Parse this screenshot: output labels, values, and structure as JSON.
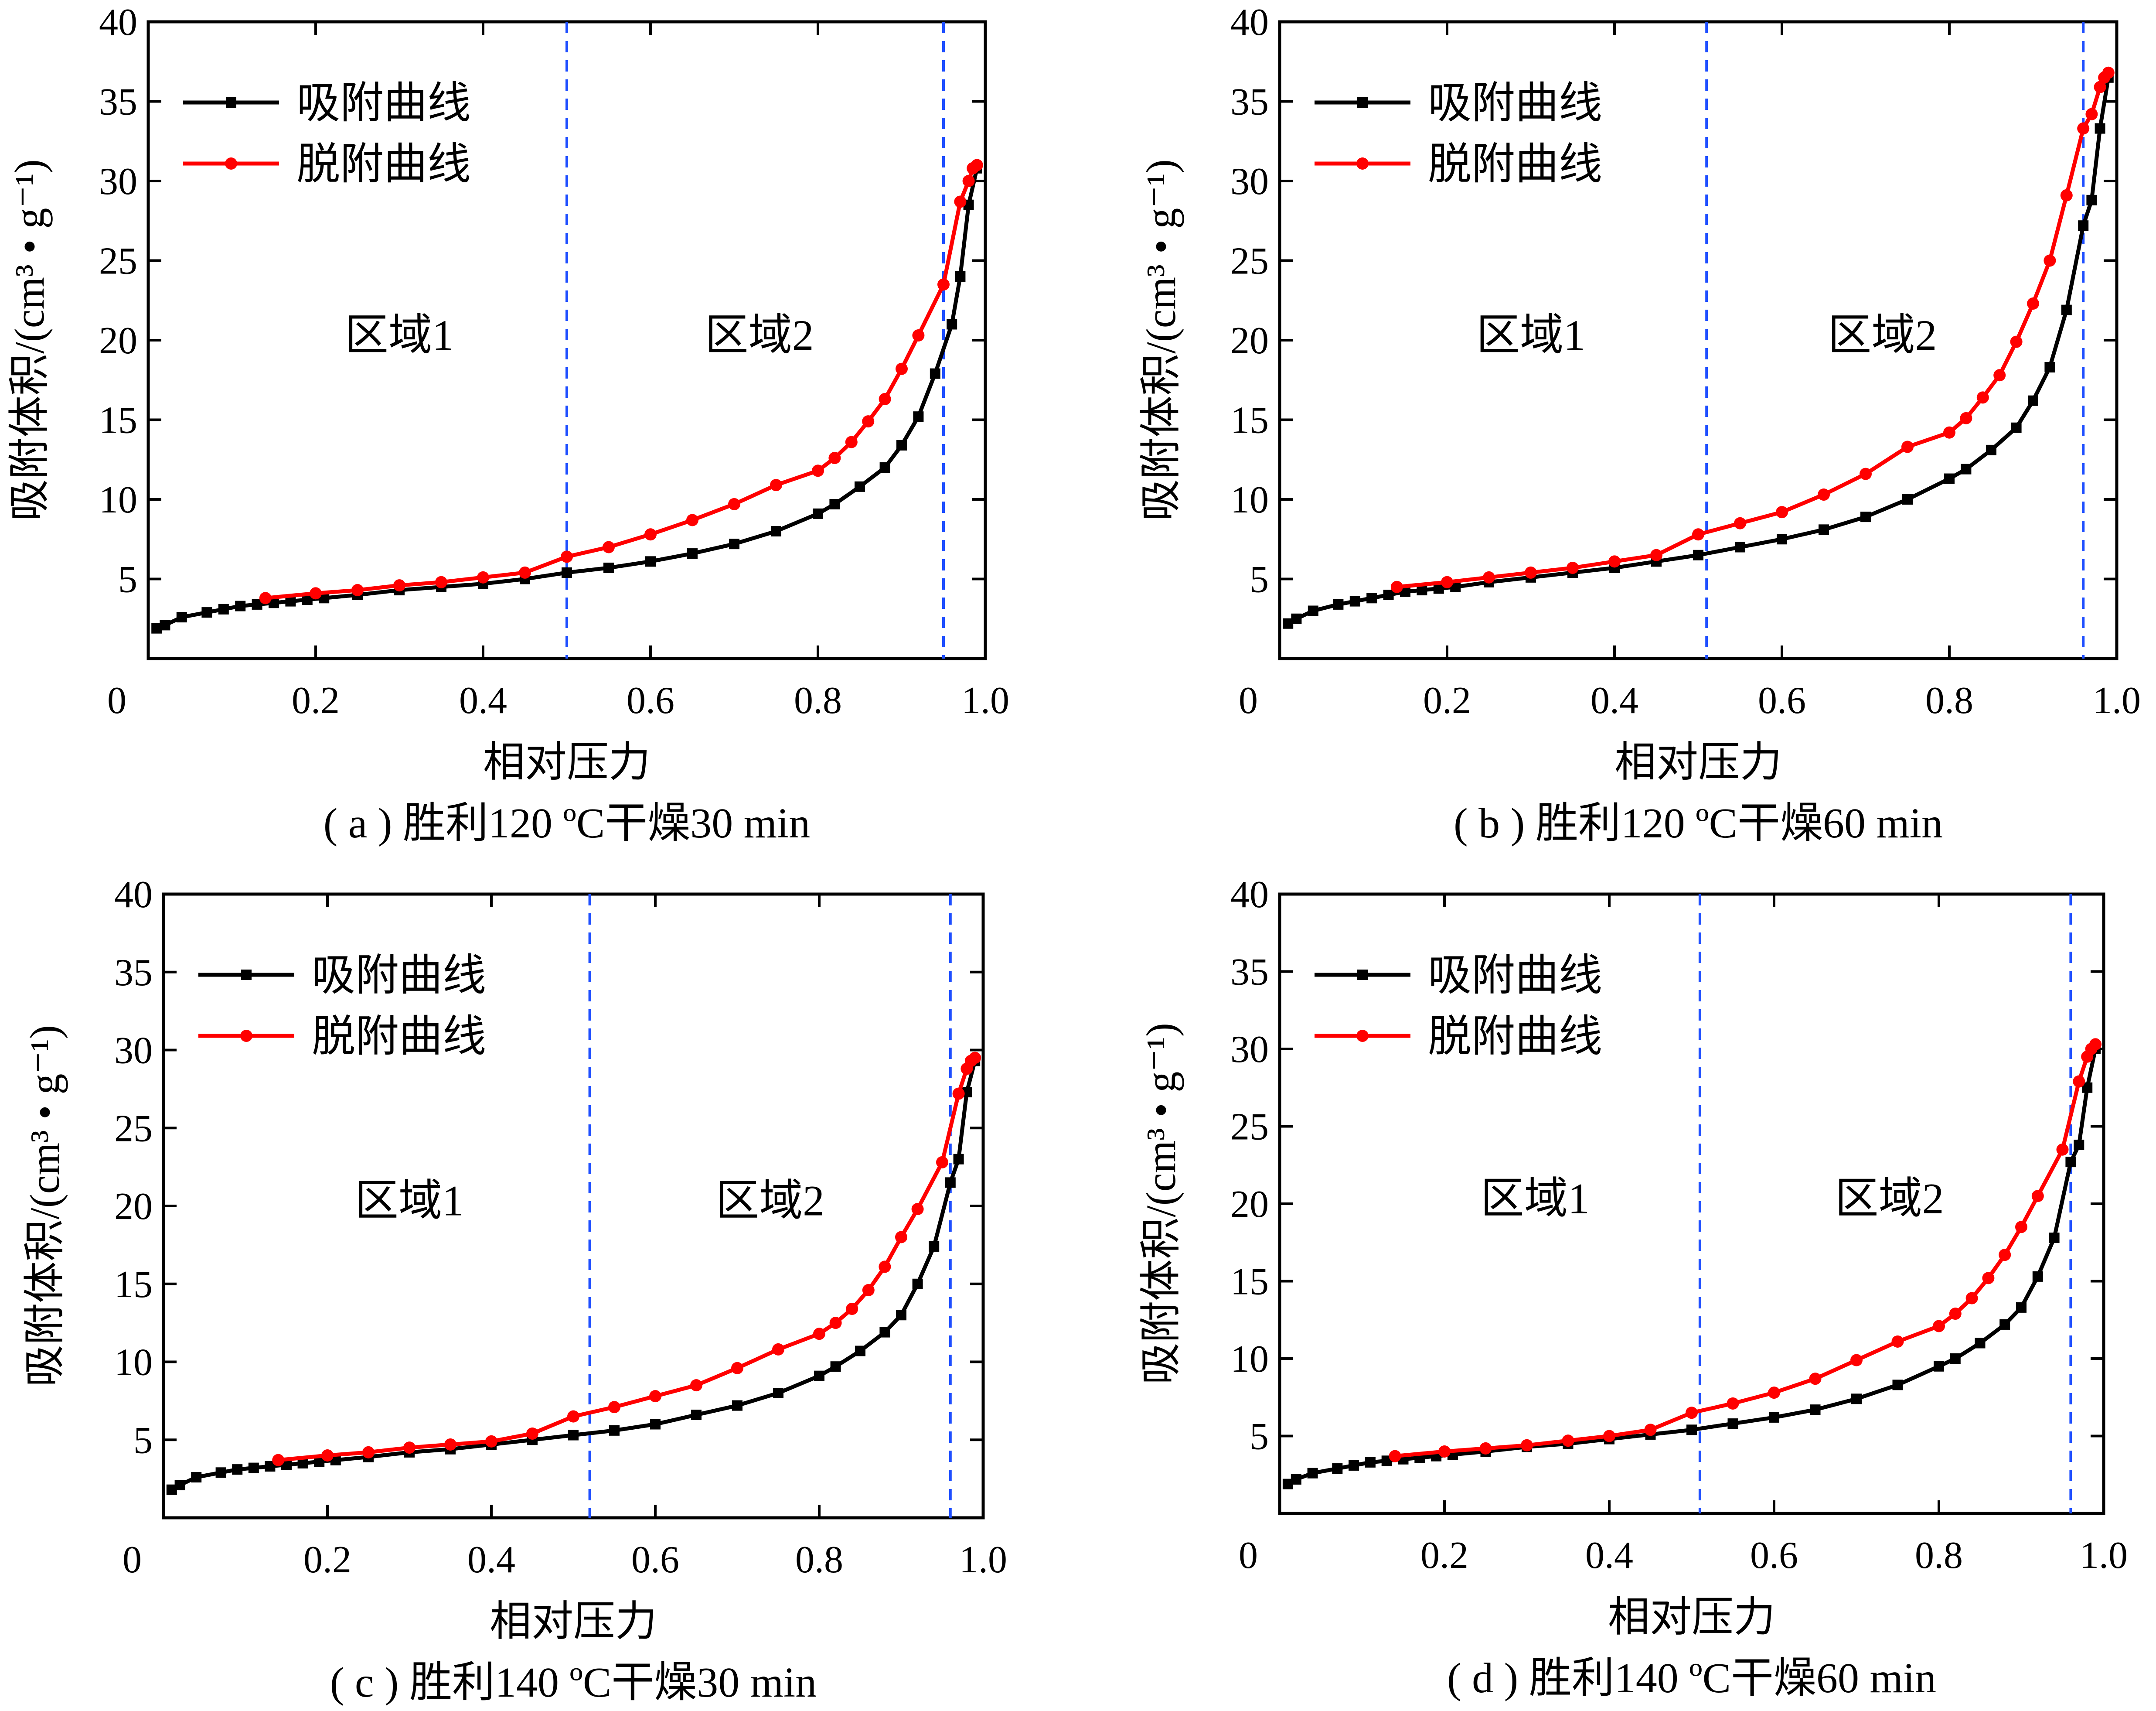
{
  "colors": {
    "adsorption": "#000000",
    "desorption": "#ff0000",
    "divider": "#1f4fff",
    "axis": "#000000"
  },
  "chart_data": [
    {
      "type": "line",
      "caption": "( a ) 胜利120 ºC干燥30 min",
      "xlabel": "相对压力",
      "ylabel": "吸附体积/(cm³ • g⁻¹)",
      "xlim": [
        0,
        1.0
      ],
      "ylim": [
        0,
        40
      ],
      "xticks": [
        "0",
        "0.2",
        "0.4",
        "0.6",
        "0.8",
        "1.0"
      ],
      "yticks": [
        "5",
        "10",
        "15",
        "20",
        "25",
        "30",
        "35",
        "40"
      ],
      "legend_position": "top-left",
      "regions": [
        {
          "label": "区域1",
          "x": 0.3
        },
        {
          "label": "区域2",
          "x": 0.73
        }
      ],
      "dividers": [
        0.5,
        0.95
      ],
      "series": [
        {
          "name": "吸附曲线",
          "role": "adsorption",
          "marker": "square",
          "x": [
            0.01,
            0.02,
            0.04,
            0.07,
            0.09,
            0.11,
            0.13,
            0.15,
            0.17,
            0.19,
            0.21,
            0.25,
            0.3,
            0.35,
            0.4,
            0.45,
            0.5,
            0.55,
            0.6,
            0.65,
            0.7,
            0.75,
            0.8,
            0.82,
            0.85,
            0.88,
            0.9,
            0.92,
            0.94,
            0.96,
            0.97,
            0.98,
            0.99
          ],
          "y": [
            1.9,
            2.1,
            2.6,
            2.9,
            3.1,
            3.3,
            3.4,
            3.5,
            3.6,
            3.7,
            3.8,
            4.0,
            4.3,
            4.5,
            4.7,
            5.0,
            5.4,
            5.7,
            6.1,
            6.6,
            7.2,
            8.0,
            9.1,
            9.7,
            10.8,
            12.0,
            13.4,
            15.2,
            17.9,
            21.0,
            24.0,
            28.5,
            30.8
          ]
        },
        {
          "name": "脱附曲线",
          "role": "desorption",
          "marker": "circle",
          "x": [
            0.99,
            0.985,
            0.98,
            0.97,
            0.95,
            0.92,
            0.9,
            0.88,
            0.86,
            0.84,
            0.82,
            0.8,
            0.75,
            0.7,
            0.65,
            0.6,
            0.55,
            0.5,
            0.45,
            0.4,
            0.35,
            0.3,
            0.25,
            0.2,
            0.14
          ],
          "y": [
            31.0,
            30.8,
            30.0,
            28.7,
            23.5,
            20.3,
            18.2,
            16.3,
            14.9,
            13.6,
            12.6,
            11.8,
            10.9,
            9.7,
            8.7,
            7.8,
            7.0,
            6.4,
            5.4,
            5.1,
            4.8,
            4.6,
            4.3,
            4.1,
            3.8
          ]
        }
      ]
    },
    {
      "type": "line",
      "caption": "( b ) 胜利120 ºC干燥60 min",
      "xlabel": "相对压力",
      "ylabel": "吸附体积/(cm³ • g⁻¹)",
      "xlim": [
        0,
        1.0
      ],
      "ylim": [
        0,
        40
      ],
      "xticks": [
        "0",
        "0.2",
        "0.4",
        "0.6",
        "0.8",
        "1.0"
      ],
      "yticks": [
        "5",
        "10",
        "15",
        "20",
        "25",
        "30",
        "35",
        "40"
      ],
      "legend_position": "top-left",
      "regions": [
        {
          "label": "区域1",
          "x": 0.3
        },
        {
          "label": "区域2",
          "x": 0.72
        }
      ],
      "dividers": [
        0.51,
        0.96
      ],
      "series": [
        {
          "name": "吸附曲线",
          "role": "adsorption",
          "marker": "square",
          "x": [
            0.01,
            0.02,
            0.04,
            0.07,
            0.09,
            0.11,
            0.13,
            0.15,
            0.17,
            0.19,
            0.21,
            0.25,
            0.3,
            0.35,
            0.4,
            0.45,
            0.5,
            0.55,
            0.6,
            0.65,
            0.7,
            0.75,
            0.8,
            0.82,
            0.85,
            0.88,
            0.9,
            0.92,
            0.94,
            0.96,
            0.97,
            0.98,
            0.99
          ],
          "y": [
            2.2,
            2.5,
            3.0,
            3.4,
            3.6,
            3.8,
            4.0,
            4.2,
            4.3,
            4.4,
            4.5,
            4.8,
            5.1,
            5.4,
            5.7,
            6.1,
            6.5,
            7.0,
            7.5,
            8.1,
            8.9,
            10.0,
            11.3,
            11.9,
            13.1,
            14.5,
            16.2,
            18.3,
            21.9,
            27.2,
            28.8,
            33.3,
            36.5
          ]
        },
        {
          "name": "脱附曲线",
          "role": "desorption",
          "marker": "circle",
          "x": [
            0.99,
            0.985,
            0.98,
            0.97,
            0.96,
            0.94,
            0.92,
            0.9,
            0.88,
            0.86,
            0.84,
            0.82,
            0.8,
            0.75,
            0.7,
            0.65,
            0.6,
            0.55,
            0.5,
            0.45,
            0.4,
            0.35,
            0.3,
            0.25,
            0.2,
            0.14
          ],
          "y": [
            36.8,
            36.5,
            35.9,
            34.2,
            33.3,
            29.1,
            25.0,
            22.3,
            19.9,
            17.8,
            16.4,
            15.1,
            14.2,
            13.3,
            11.6,
            10.3,
            9.2,
            8.5,
            7.8,
            6.5,
            6.1,
            5.7,
            5.4,
            5.1,
            4.8,
            4.5
          ]
        }
      ]
    },
    {
      "type": "line",
      "caption": "( c ) 胜利140 ºC干燥30 min",
      "xlabel": "相对压力",
      "ylabel": "吸附体积/(cm³ • g⁻¹)",
      "xlim": [
        0,
        1.0
      ],
      "ylim": [
        0,
        40
      ],
      "xticks": [
        "0",
        "0.2",
        "0.4",
        "0.6",
        "0.8",
        "1.0"
      ],
      "yticks": [
        "5",
        "10",
        "15",
        "20",
        "25",
        "30",
        "35",
        "40"
      ],
      "legend_position": "top-left",
      "regions": [
        {
          "label": "区域1",
          "x": 0.3
        },
        {
          "label": "区域2",
          "x": 0.74
        }
      ],
      "dividers": [
        0.52,
        0.96
      ],
      "series": [
        {
          "name": "吸附曲线",
          "role": "adsorption",
          "marker": "square",
          "x": [
            0.01,
            0.02,
            0.04,
            0.07,
            0.09,
            0.11,
            0.13,
            0.15,
            0.17,
            0.19,
            0.21,
            0.25,
            0.3,
            0.35,
            0.4,
            0.45,
            0.5,
            0.55,
            0.6,
            0.65,
            0.7,
            0.75,
            0.8,
            0.82,
            0.85,
            0.88,
            0.9,
            0.92,
            0.94,
            0.96,
            0.97,
            0.98,
            0.99
          ],
          "y": [
            1.8,
            2.1,
            2.6,
            2.9,
            3.1,
            3.2,
            3.3,
            3.4,
            3.5,
            3.6,
            3.7,
            3.9,
            4.2,
            4.4,
            4.7,
            5.0,
            5.3,
            5.6,
            6.0,
            6.6,
            7.2,
            8.0,
            9.1,
            9.7,
            10.7,
            11.9,
            13.0,
            15.0,
            17.4,
            21.5,
            23.0,
            27.3,
            29.3
          ]
        },
        {
          "name": "脱附曲线",
          "role": "desorption",
          "marker": "circle",
          "x": [
            0.99,
            0.985,
            0.98,
            0.97,
            0.95,
            0.92,
            0.9,
            0.88,
            0.86,
            0.84,
            0.82,
            0.8,
            0.75,
            0.7,
            0.65,
            0.6,
            0.55,
            0.5,
            0.45,
            0.4,
            0.35,
            0.3,
            0.25,
            0.2,
            0.14
          ],
          "y": [
            29.5,
            29.3,
            28.8,
            27.2,
            22.8,
            19.8,
            18.0,
            16.1,
            14.6,
            13.4,
            12.5,
            11.8,
            10.8,
            9.6,
            8.5,
            7.8,
            7.1,
            6.5,
            5.4,
            4.9,
            4.7,
            4.5,
            4.2,
            4.0,
            3.7
          ]
        }
      ]
    },
    {
      "type": "line",
      "caption": "( d ) 胜利140 ºC干燥60 min",
      "xlabel": "相对压力",
      "ylabel": "吸附体积/(cm³ • g⁻¹)",
      "xlim": [
        0,
        1.0
      ],
      "ylim": [
        0,
        40
      ],
      "xticks": [
        "0",
        "0.2",
        "0.4",
        "0.6",
        "0.8",
        "1.0"
      ],
      "yticks": [
        "5",
        "10",
        "15",
        "20",
        "25",
        "30",
        "35",
        "40"
      ],
      "legend_position": "top-left",
      "regions": [
        {
          "label": "区域1",
          "x": 0.31
        },
        {
          "label": "区域2",
          "x": 0.74
        }
      ],
      "dividers": [
        0.51,
        0.96
      ],
      "series": [
        {
          "name": "吸附曲线",
          "role": "adsorption",
          "marker": "square",
          "x": [
            0.01,
            0.02,
            0.04,
            0.07,
            0.09,
            0.11,
            0.13,
            0.15,
            0.17,
            0.19,
            0.21,
            0.25,
            0.3,
            0.35,
            0.4,
            0.45,
            0.5,
            0.55,
            0.6,
            0.65,
            0.7,
            0.75,
            0.8,
            0.82,
            0.85,
            0.88,
            0.9,
            0.92,
            0.94,
            0.96,
            0.97,
            0.98,
            0.99
          ],
          "y": [
            1.9,
            2.2,
            2.6,
            2.9,
            3.1,
            3.3,
            3.4,
            3.5,
            3.6,
            3.7,
            3.8,
            4.0,
            4.3,
            4.5,
            4.8,
            5.1,
            5.4,
            5.8,
            6.2,
            6.7,
            7.4,
            8.3,
            9.5,
            10.0,
            11.0,
            12.2,
            13.3,
            15.3,
            17.8,
            22.7,
            23.8,
            27.5,
            30.0
          ]
        },
        {
          "name": "脱附曲线",
          "role": "desorption",
          "marker": "circle",
          "x": [
            0.99,
            0.985,
            0.98,
            0.97,
            0.95,
            0.92,
            0.9,
            0.88,
            0.86,
            0.84,
            0.82,
            0.8,
            0.75,
            0.7,
            0.65,
            0.6,
            0.55,
            0.5,
            0.45,
            0.4,
            0.35,
            0.3,
            0.25,
            0.2,
            0.14
          ],
          "y": [
            30.3,
            30.0,
            29.5,
            27.9,
            23.5,
            20.5,
            18.5,
            16.7,
            15.2,
            13.9,
            12.9,
            12.1,
            11.1,
            9.9,
            8.7,
            7.8,
            7.1,
            6.5,
            5.4,
            5.0,
            4.7,
            4.4,
            4.2,
            4.0,
            3.7
          ]
        }
      ]
    }
  ]
}
